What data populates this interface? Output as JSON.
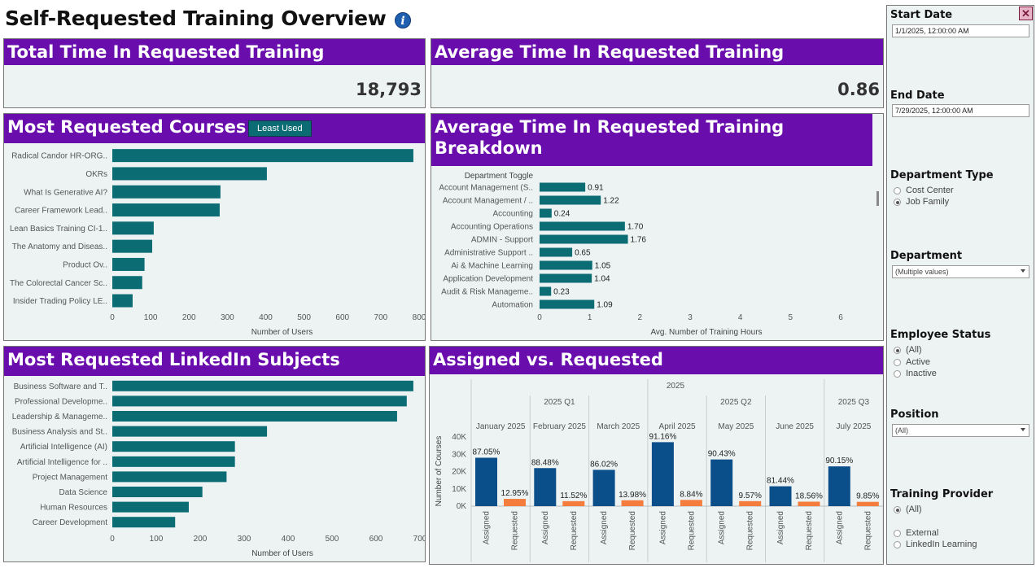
{
  "header": {
    "title": "Self-Requested Training Overview",
    "info_icon": "info-icon"
  },
  "kpi_total": {
    "title": "Total Time In Requested Training",
    "value": "18,793"
  },
  "kpi_avg": {
    "title": "Average Time In Requested Training",
    "value": "0.86"
  },
  "most_courses": {
    "title": "Most Requested Courses",
    "toggle_label": "Least Used",
    "xlabel": "Number of Users",
    "ticks": [
      0,
      100,
      200,
      300,
      400,
      500,
      600,
      700,
      800
    ],
    "categories": [
      "Radical Candor HR-ORG..",
      "OKRs",
      "What Is Generative AI?",
      "Career Framework Lead..",
      "Lean Basics Training CI-1..",
      "The Anatomy and Diseas..",
      "Product Ov..",
      "The Colorectal Cancer Sc..",
      "Insider Trading Policy LE.."
    ],
    "values": [
      785,
      403,
      282,
      280,
      108,
      104,
      84,
      78,
      53
    ]
  },
  "avg_breakdown": {
    "title_line1": "Average Time In Requested Training",
    "title_line2": "Breakdown",
    "toggle_header": "Department Toggle",
    "xlabel": "Avg. Number of Training Hours",
    "ticks": [
      0,
      1,
      2,
      3,
      4,
      5,
      6
    ],
    "categories": [
      "Account Management (S..",
      "Account Management / ..",
      "Accounting",
      "Accounting Operations",
      "ADMIN - Support",
      "Administrative Support ..",
      "Ai & Machine Learning",
      "Application Development",
      "Audit & Risk Manageme..",
      "Automation"
    ],
    "values": [
      0.91,
      1.22,
      0.24,
      1.7,
      1.76,
      0.65,
      1.05,
      1.04,
      0.23,
      1.09
    ],
    "labels": [
      "0.91",
      "1.22",
      "0.24",
      "1.70",
      "1.76",
      "0.65",
      "1.05",
      "1.04",
      "0.23",
      "1.09"
    ]
  },
  "linkedin": {
    "title": "Most Requested LinkedIn Subjects",
    "xlabel": "Number of Users",
    "ticks": [
      0,
      100,
      200,
      300,
      400,
      500,
      600,
      700
    ],
    "categories": [
      "Business Software and T..",
      "Professional Developme..",
      "Leadership & Manageme..",
      "Business Analysis and St..",
      "Artificial Intelligence (AI)",
      "Artificial Intelligence for ..",
      "Project Management",
      "Data Science",
      "Human Resources",
      "Career Development"
    ],
    "values": [
      685,
      670,
      648,
      352,
      279,
      279,
      260,
      205,
      174,
      143
    ]
  },
  "assigned_vs_requested": {
    "title": "Assigned vs. Requested",
    "year": "2025",
    "quarters": [
      "2025 Q1",
      "2025 Q2",
      "2025 Q3"
    ],
    "months": [
      "January 2025",
      "February 2025",
      "March 2025",
      "April 2025",
      "May 2025",
      "June 2025",
      "July 2025"
    ],
    "ylabel": "Number of Courses",
    "yticks": [
      "0K",
      "10K",
      "20K",
      "30K",
      "40K"
    ],
    "series_labels": [
      "Assigned",
      "Requested"
    ],
    "assigned": [
      28000,
      22000,
      21000,
      37000,
      27000,
      11500,
      23000
    ],
    "requested": [
      4200,
      2900,
      3400,
      3600,
      2900,
      2600,
      2500
    ],
    "assigned_pct": [
      "87.05%",
      "88.48%",
      "86.02%",
      "91.16%",
      "90.43%",
      "81.44%",
      "90.15%"
    ],
    "requested_pct": [
      "12.95%",
      "11.52%",
      "13.98%",
      "8.84%",
      "9.57%",
      "18.56%",
      "9.85%"
    ],
    "colors": {
      "assigned": "#0b4f8a",
      "requested": "#f47c3c"
    }
  },
  "sidebar": {
    "start_date_label": "Start Date",
    "start_date_value": "1/1/2025, 12:00:00 AM",
    "end_date_label": "End Date",
    "end_date_value": "7/29/2025, 12:00:00 AM",
    "dept_type_label": "Department Type",
    "dept_type_options": [
      "Cost Center",
      "Job Family"
    ],
    "department_label": "Department",
    "department_value": "(Multiple values)",
    "emp_status_label": "Employee Status",
    "emp_status_options": [
      "(All)",
      "Active",
      "Inactive"
    ],
    "position_label": "Position",
    "position_value": "(All)",
    "provider_label": "Training Provider",
    "provider_options": [
      "(All)",
      "External",
      "LinkedIn Learning"
    ]
  },
  "colors": {
    "bar": "#0b6c74",
    "title_bg": "#6a0dad",
    "panel_bg": "#edf3f3"
  }
}
